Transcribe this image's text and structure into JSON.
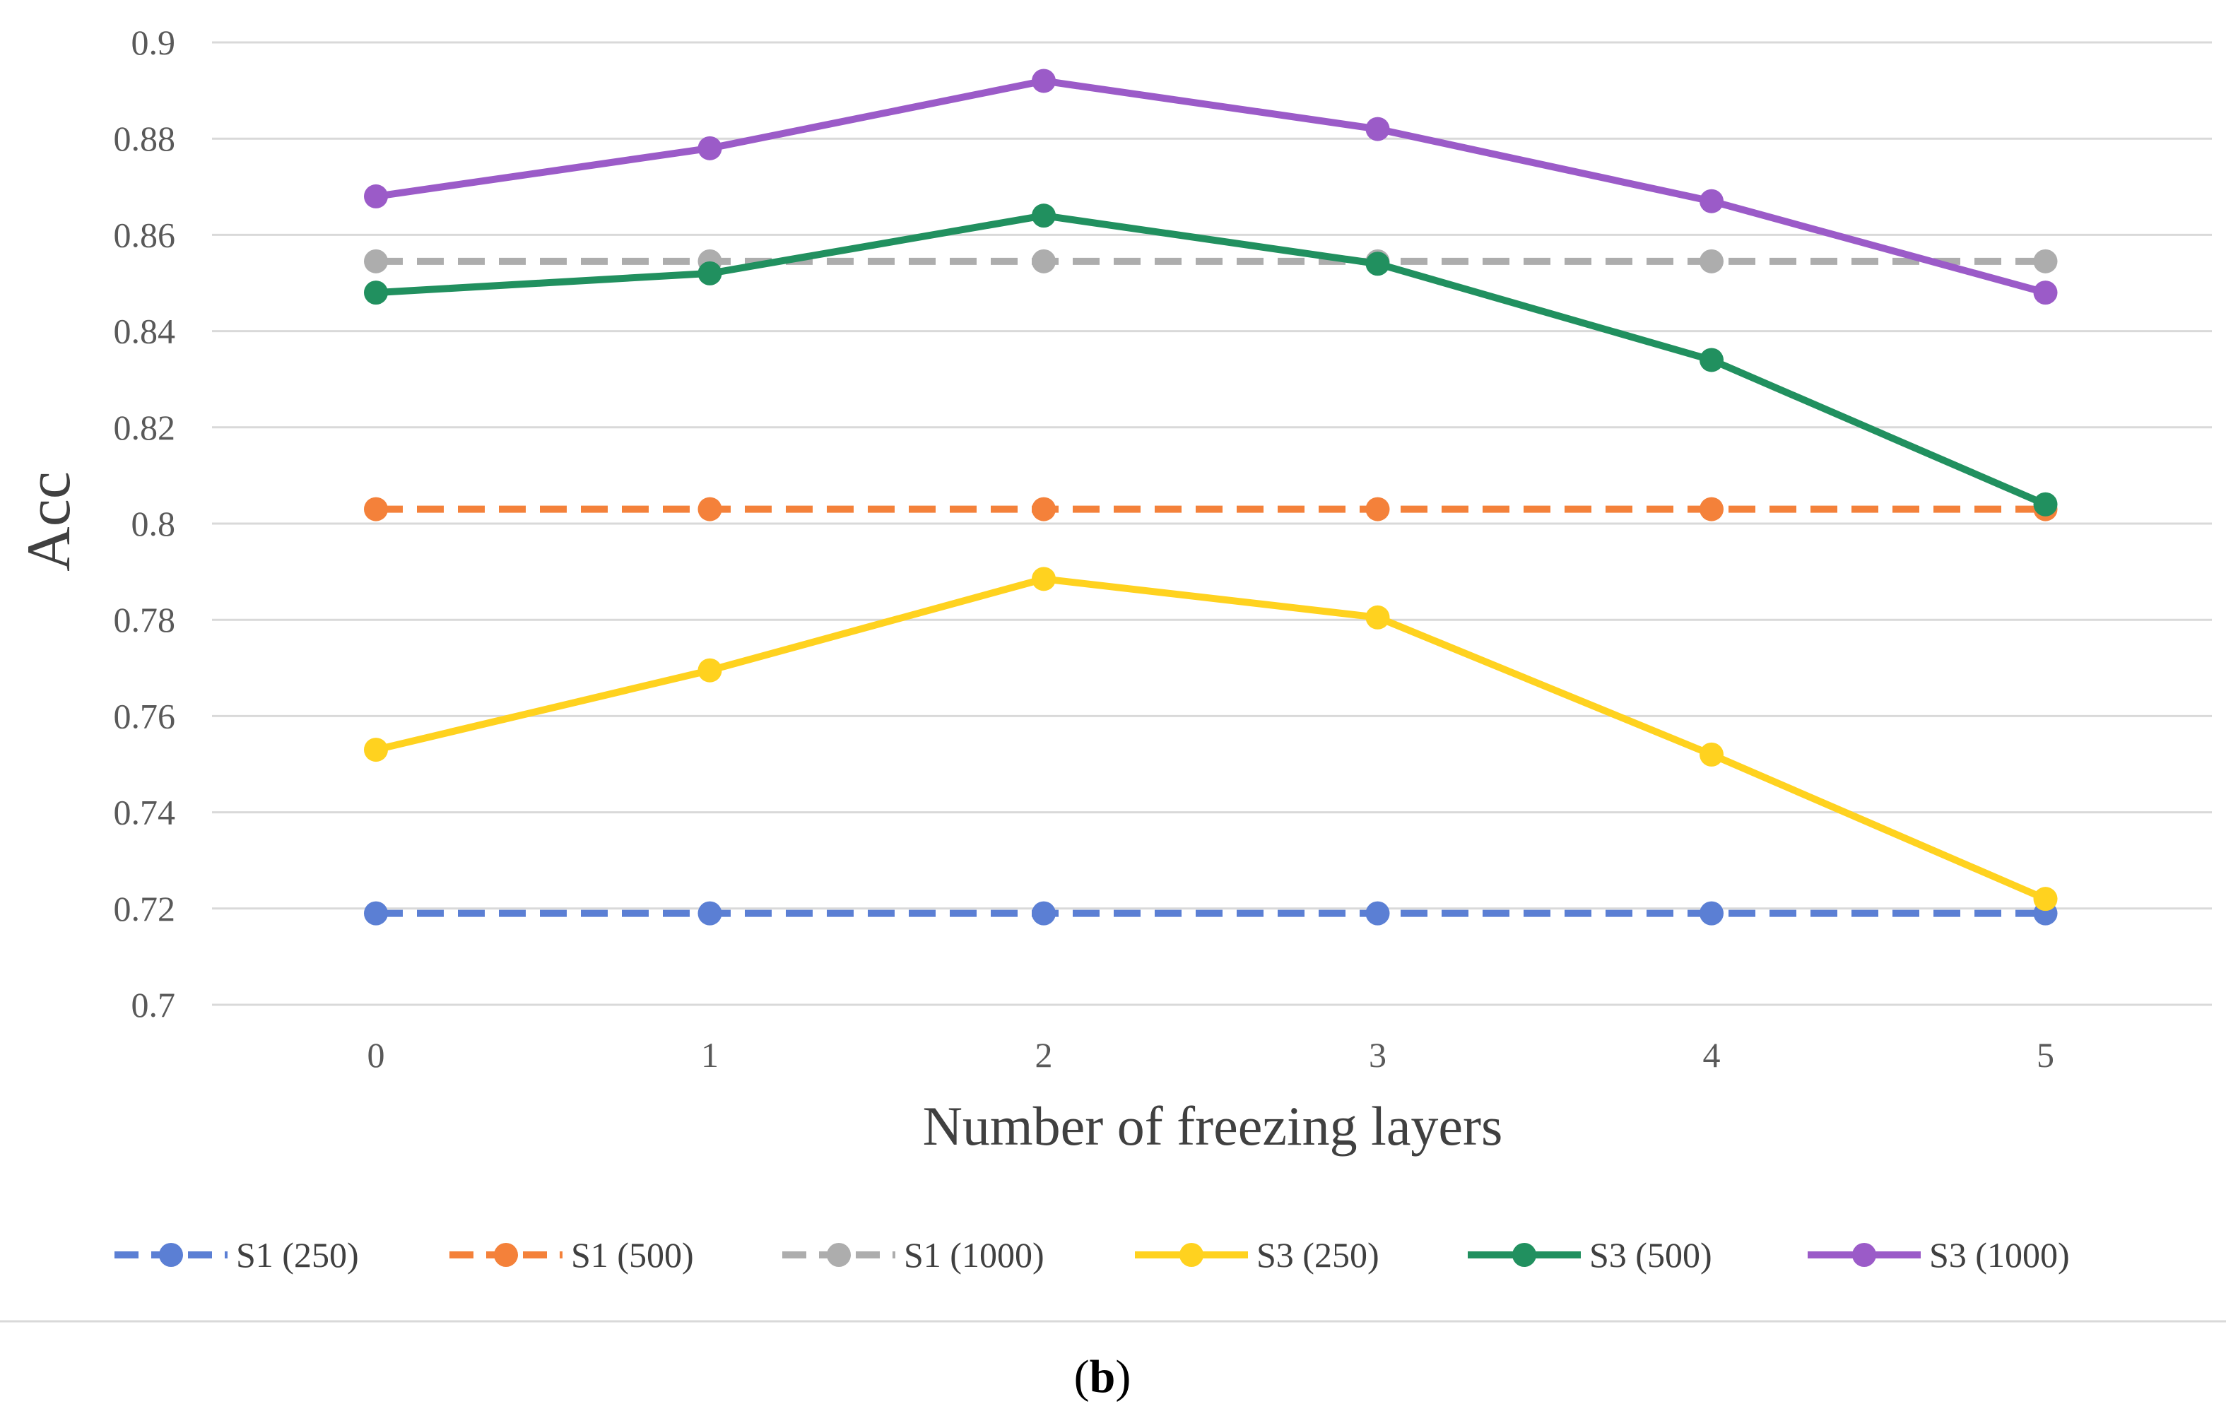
{
  "chart_data": {
    "type": "line",
    "title": "",
    "xlabel": "Number of freezing layers",
    "ylabel": "Acc",
    "categories": [
      "0",
      "1",
      "2",
      "3",
      "4",
      "5"
    ],
    "ylim": [
      0.7,
      0.9
    ],
    "yticks": [
      "0.7",
      "0.72",
      "0.74",
      "0.76",
      "0.78",
      "0.8",
      "0.82",
      "0.84",
      "0.86",
      "0.88",
      "0.9"
    ],
    "grid": true,
    "legend_position": "bottom",
    "series": [
      {
        "name": "S1 (250)",
        "values": [
          0.719,
          0.719,
          0.719,
          0.719,
          0.719,
          0.719
        ],
        "color": "#5B7FD4",
        "dashed": true
      },
      {
        "name": "S1 (500)",
        "values": [
          0.803,
          0.803,
          0.803,
          0.803,
          0.803,
          0.803
        ],
        "color": "#F4813A",
        "dashed": true
      },
      {
        "name": "S1 (1000)",
        "values": [
          0.8545,
          0.8545,
          0.8545,
          0.8545,
          0.8545,
          0.8545
        ],
        "color": "#ADADAD",
        "dashed": true
      },
      {
        "name": "S3 (250)",
        "values": [
          0.753,
          0.7695,
          0.7885,
          0.7805,
          0.752,
          0.722
        ],
        "color": "#FFD21F",
        "dashed": false
      },
      {
        "name": "S3 (500)",
        "values": [
          0.848,
          0.852,
          0.864,
          0.854,
          0.834,
          0.804
        ],
        "color": "#21905F",
        "dashed": false
      },
      {
        "name": "S3 (1000)",
        "values": [
          0.868,
          0.878,
          0.892,
          0.882,
          0.867,
          0.848
        ],
        "color": "#9B5BC8",
        "dashed": false
      }
    ]
  },
  "caption": {
    "paren_open": "(",
    "letter": "b",
    "paren_close": ")"
  },
  "colors": {
    "grid": "#d9d9d9",
    "tick_text": "#595959"
  }
}
